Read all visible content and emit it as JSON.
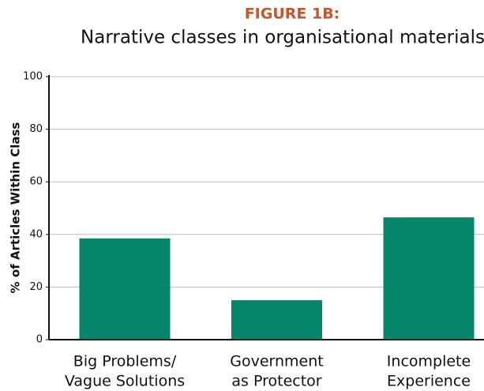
{
  "chart_data": {
    "type": "bar",
    "title": "FIGURE 1B:",
    "subtitle": "Narrative classes in organisational materials",
    "y_label": "% of Articles Within Class",
    "categories": [
      [
        "Big Problems/",
        "Vague Solutions"
      ],
      [
        "Government",
        "as Protector"
      ],
      [
        "Incomplete",
        "Experience"
      ]
    ],
    "values": [
      38.5,
      15,
      46.5
    ],
    "color": "#05866a",
    "title_color": "#c8552b",
    "ylim": [
      0,
      100
    ],
    "yticks": [
      0,
      20,
      40,
      60,
      80,
      100
    ],
    "grid": true
  }
}
